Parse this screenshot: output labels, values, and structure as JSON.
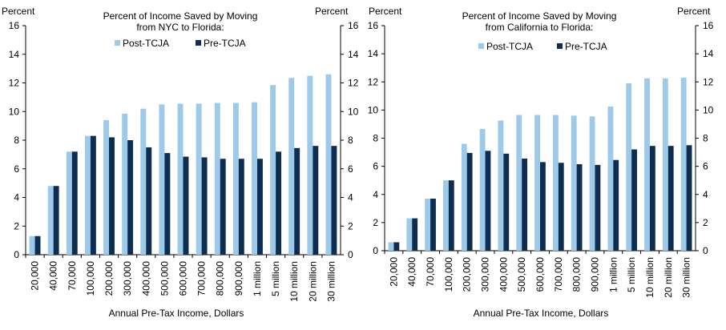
{
  "chart_data": [
    {
      "type": "bar",
      "title_lines": [
        "Percent of Income Saved by Moving",
        "from NYC to Florida:"
      ],
      "left_unit": "Percent",
      "right_unit": "Percent",
      "xlabel": "Annual Pre-Tax Income, Dollars",
      "ylim": [
        0,
        16
      ],
      "yticks": [
        "0",
        "2",
        "4",
        "6",
        "8",
        "10",
        "12",
        "14",
        "16"
      ],
      "categories": [
        "20,000",
        "40,000",
        "70,000",
        "100,000",
        "200,000",
        "300,000",
        "400,000",
        "500,000",
        "600,000",
        "700,000",
        "800,000",
        "900,000",
        "1 million",
        "5 million",
        "10 million",
        "20 million",
        "30 million"
      ],
      "series": [
        {
          "name": "Post-TCJA",
          "color": "#9ecae9",
          "values": [
            1.3,
            4.8,
            7.2,
            8.3,
            9.4,
            9.85,
            10.2,
            10.5,
            10.55,
            10.55,
            10.6,
            10.6,
            10.65,
            11.85,
            12.35,
            12.5,
            12.6
          ]
        },
        {
          "name": "Pre-TCJA",
          "color": "#0d2e50",
          "values": [
            1.3,
            4.8,
            7.2,
            8.3,
            8.2,
            8.0,
            7.5,
            7.1,
            6.85,
            6.8,
            6.7,
            6.7,
            6.7,
            7.2,
            7.45,
            7.6,
            7.6
          ]
        }
      ]
    },
    {
      "type": "bar",
      "title_lines": [
        "Percent of Income Saved by Moving",
        "from California to Florida:"
      ],
      "left_unit": "Percent",
      "right_unit": "Percent",
      "xlabel": "Annual Pre-Tax Income, Dollars",
      "ylim": [
        0,
        16
      ],
      "yticks": [
        "0",
        "2",
        "4",
        "6",
        "8",
        "10",
        "12",
        "14",
        "16"
      ],
      "categories": [
        "20,000",
        "40,000",
        "70,000",
        "100,000",
        "200,000",
        "300,000",
        "400,000",
        "500,000",
        "600,000",
        "700,000",
        "800,000",
        "900,000",
        "1 million",
        "5 million",
        "10 million",
        "20 million",
        "30 million"
      ],
      "series": [
        {
          "name": "Post-TCJA",
          "color": "#9ecae9",
          "values": [
            0.6,
            2.3,
            3.7,
            5.0,
            7.6,
            8.65,
            9.25,
            9.65,
            9.65,
            9.65,
            9.6,
            9.55,
            10.25,
            11.9,
            12.25,
            12.25,
            12.3
          ]
        },
        {
          "name": "Pre-TCJA",
          "color": "#0d2e50",
          "values": [
            0.6,
            2.3,
            3.7,
            5.0,
            6.95,
            7.1,
            6.9,
            6.55,
            6.3,
            6.25,
            6.15,
            6.1,
            6.45,
            7.2,
            7.45,
            7.45,
            7.5
          ]
        }
      ]
    }
  ]
}
